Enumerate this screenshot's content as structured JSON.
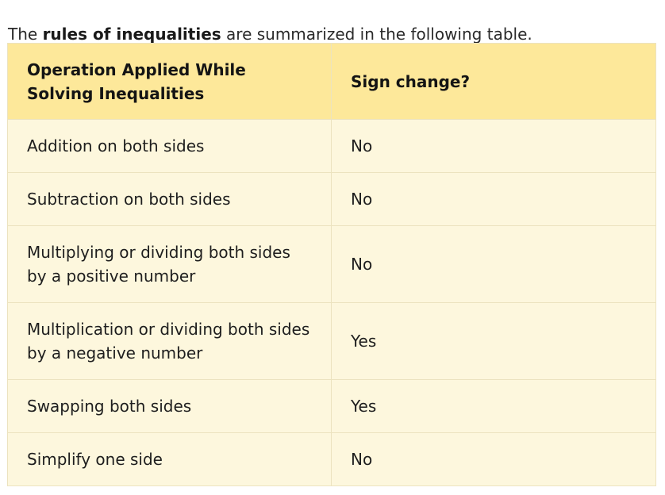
{
  "intro": {
    "prefix": "The ",
    "highlight": "rules of inequalities",
    "suffix": " are summarized in the following table."
  },
  "table": {
    "headers": [
      "Operation Applied While Solving Inequalities",
      "Sign change?"
    ],
    "rows": [
      {
        "operation": "Addition on both sides",
        "sign_change": "No"
      },
      {
        "operation": "Subtraction on both sides",
        "sign_change": "No"
      },
      {
        "operation": "Multiplying or dividing both sides by a positive number",
        "sign_change": "No"
      },
      {
        "operation": "Multiplication or dividing both sides by a negative number",
        "sign_change": "Yes"
      },
      {
        "operation": "Swapping both sides",
        "sign_change": "Yes"
      },
      {
        "operation": "Simplify one side",
        "sign_change": "No"
      }
    ]
  },
  "colors": {
    "header_bg": "#fde89a",
    "row_bg": "#fdf7dd",
    "border": "#ece3bf"
  }
}
